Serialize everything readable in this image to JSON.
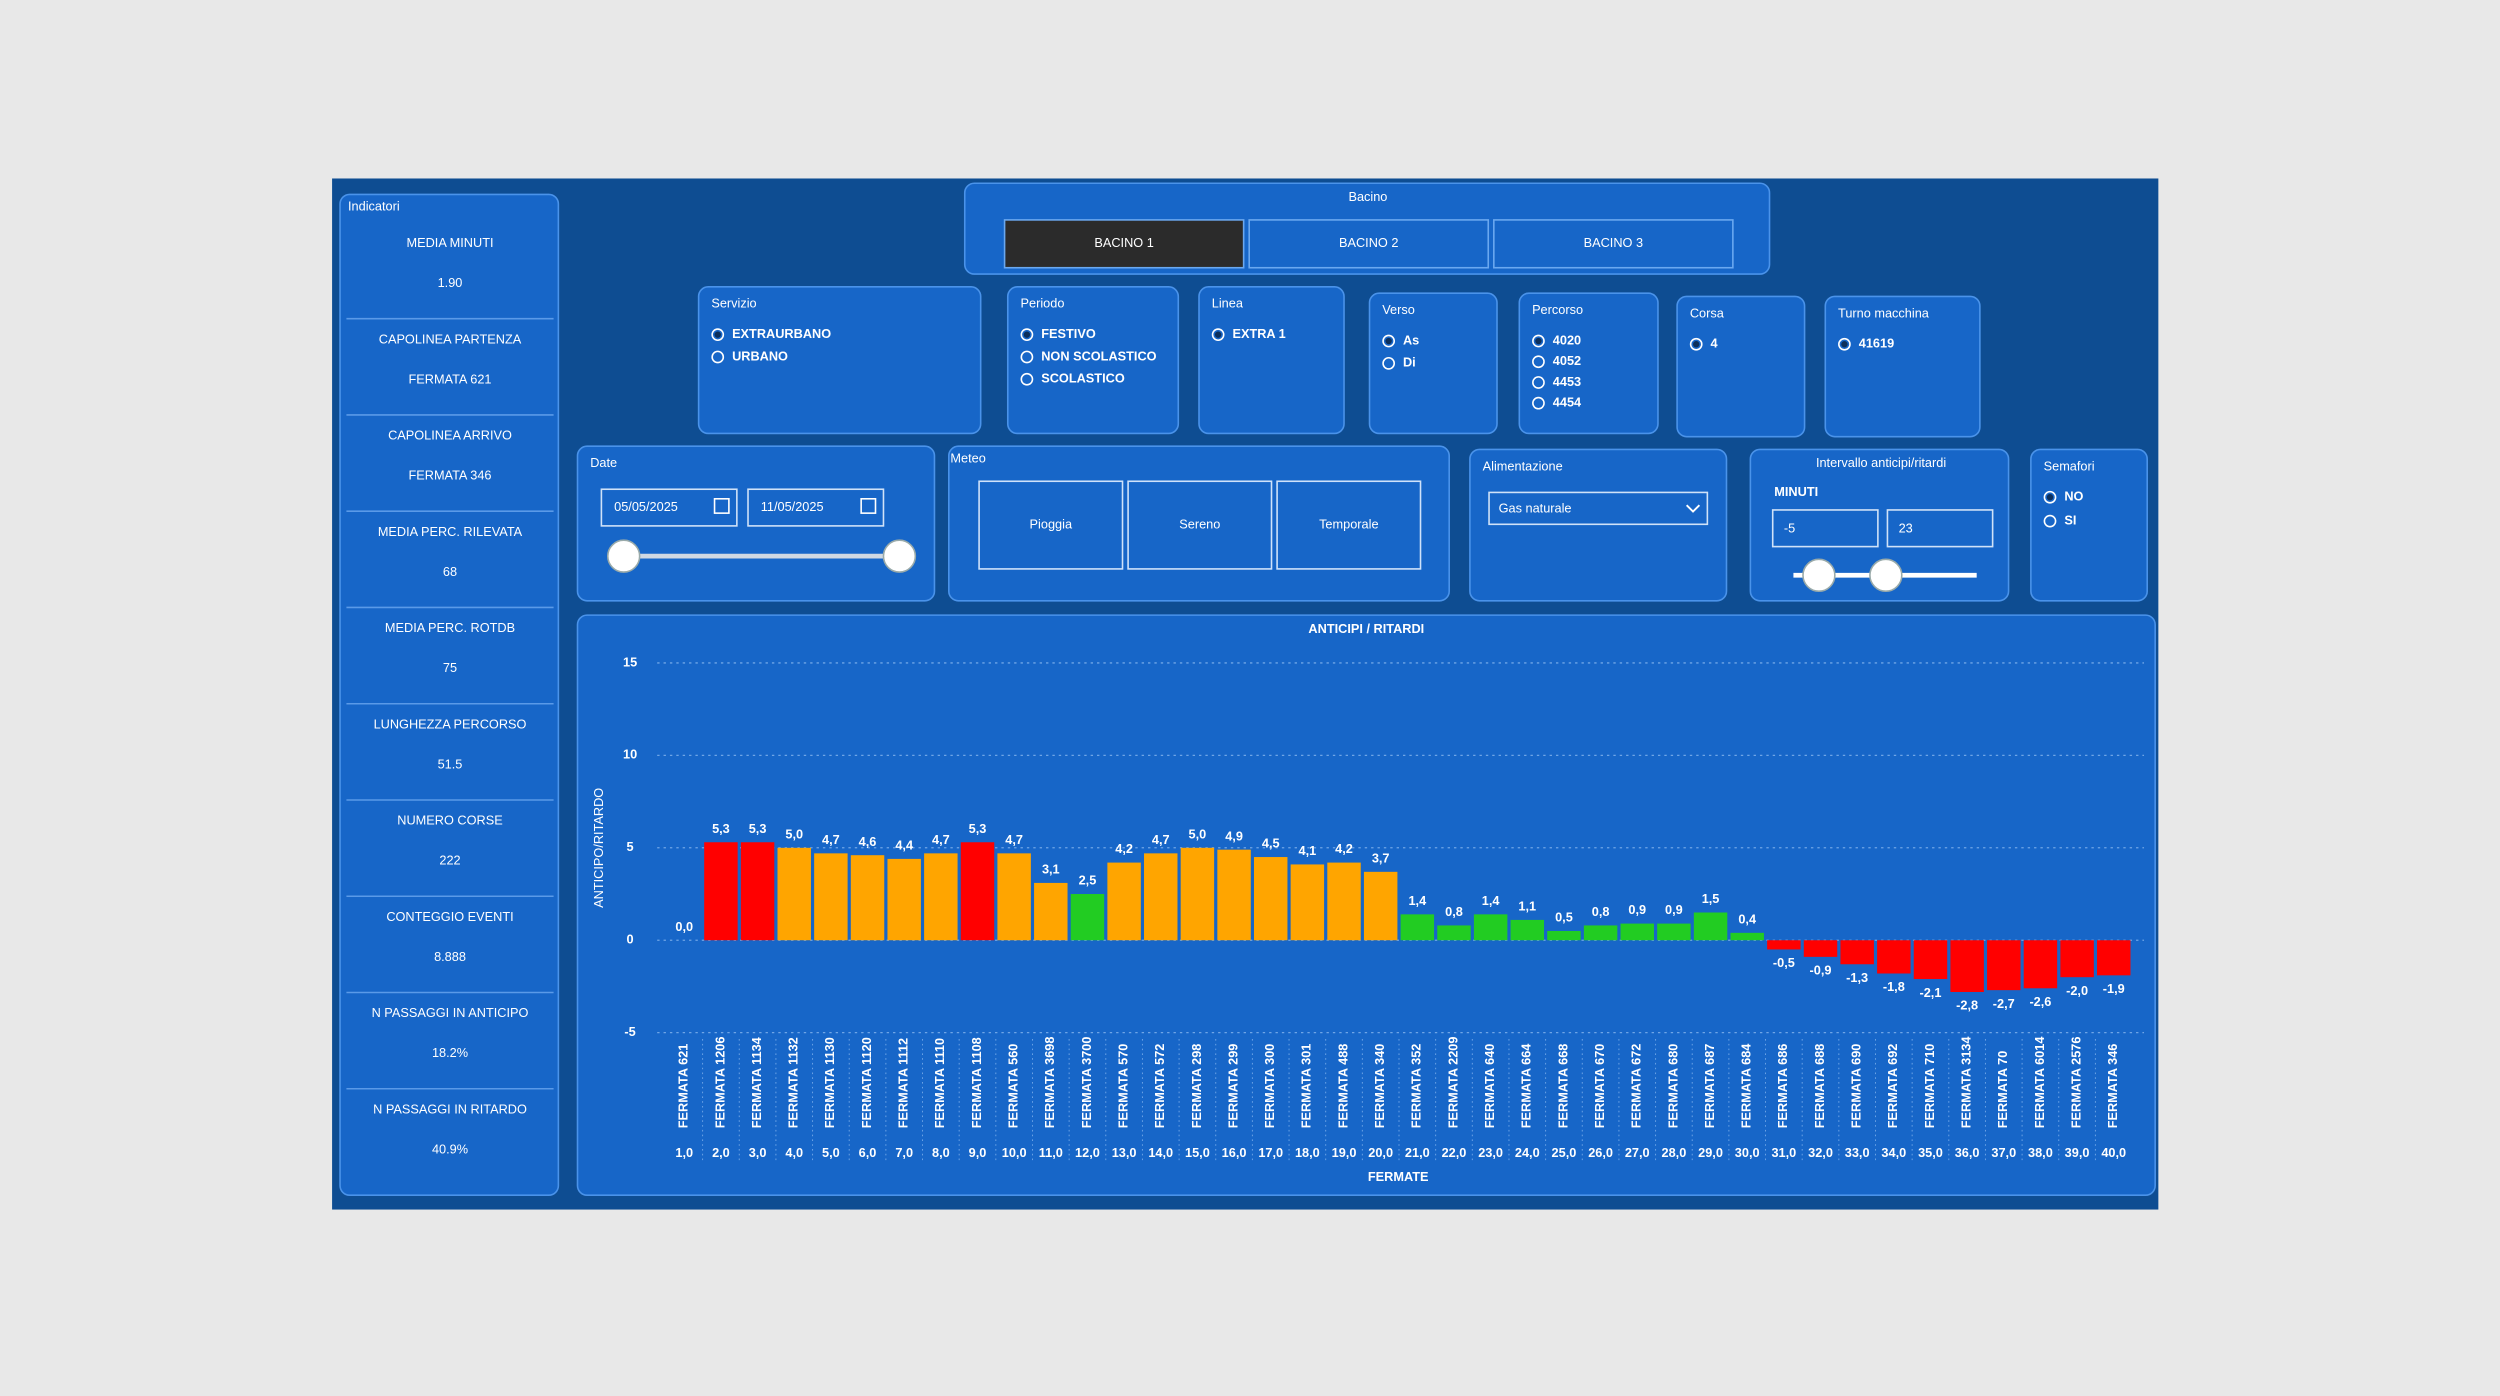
{
  "indicators": {
    "title": "Indicatori",
    "items": [
      {
        "label": "MEDIA MINUTI",
        "value": "1.90"
      },
      {
        "label": "CAPOLINEA PARTENZA",
        "value": "FERMATA 621"
      },
      {
        "label": "CAPOLINEA ARRIVO",
        "value": "FERMATA 346"
      },
      {
        "label": "MEDIA PERC. RILEVATA",
        "value": "68"
      },
      {
        "label": "MEDIA PERC. ROTDB",
        "value": "75"
      },
      {
        "label": "LUNGHEZZA PERCORSO",
        "value": "51.5"
      },
      {
        "label": "NUMERO CORSE",
        "value": "222"
      },
      {
        "label": "CONTEGGIO EVENTI",
        "value": "8.888"
      },
      {
        "label": "N PASSAGGI IN ANTICIPO",
        "value": "18.2%"
      },
      {
        "label": "N PASSAGGI IN RITARDO",
        "value": "40.9%"
      }
    ]
  },
  "bacino": {
    "title": "Bacino",
    "buttons": [
      {
        "label": "BACINO 1",
        "selected": true
      },
      {
        "label": "BACINO 2",
        "selected": false
      },
      {
        "label": "BACINO 3",
        "selected": false
      }
    ]
  },
  "filters": [
    {
      "title": "Servizio",
      "options": [
        {
          "label": "EXTRAURBANO",
          "selected": true
        },
        {
          "label": "URBANO",
          "selected": false
        }
      ]
    },
    {
      "title": "Periodo",
      "options": [
        {
          "label": "FESTIVO",
          "selected": true
        },
        {
          "label": "NON SCOLASTICO",
          "selected": false
        },
        {
          "label": "SCOLASTICO",
          "selected": false
        }
      ]
    },
    {
      "title": "Linea",
      "options": [
        {
          "label": "EXTRA 1",
          "selected": true
        }
      ]
    },
    {
      "title": "Verso",
      "options": [
        {
          "label": "As",
          "selected": true
        },
        {
          "label": "Di",
          "selected": false
        }
      ]
    },
    {
      "title": "Percorso",
      "options": [
        {
          "label": "4020",
          "selected": true
        },
        {
          "label": "4052",
          "selected": false
        },
        {
          "label": "4453",
          "selected": false
        },
        {
          "label": "4454",
          "selected": false
        }
      ]
    },
    {
      "title": "Corsa",
      "options": [
        {
          "label": "4",
          "selected": true
        }
      ]
    },
    {
      "title": "Turno macchina",
      "options": [
        {
          "label": "41619",
          "selected": true
        }
      ]
    },
    {
      "title": "Semafori",
      "options": [
        {
          "label": "NO",
          "selected": true
        },
        {
          "label": "SI",
          "selected": false
        }
      ]
    }
  ],
  "date": {
    "title": "Date",
    "start": "05/05/2025",
    "end": "11/05/2025"
  },
  "meteo": {
    "title": "Meteo",
    "buttons": [
      "Pioggia",
      "Sereno",
      "Temporale"
    ]
  },
  "alimentazione": {
    "title": "Alimentazione",
    "value": "Gas naturale"
  },
  "intervallo": {
    "title": "Intervallo anticipi/ritardi",
    "unit_label": "MINUTI",
    "min": "-5",
    "max": "23"
  },
  "chart_data": {
    "type": "bar",
    "title": "ANTICIPI / RITARDI",
    "y_label": "ANTICIPO/RITARDO",
    "x_label": "FERMATE",
    "categories": [
      "FERMATA 621",
      "FERMATA 1206",
      "FERMATA 1134",
      "FERMATA 1132",
      "FERMATA 1130",
      "FERMATA 1120",
      "FERMATA 1112",
      "FERMATA 1110",
      "FERMATA 1108",
      "FERMATA 560",
      "FERMATA 3698",
      "FERMATA 3700",
      "FERMATA 570",
      "FERMATA 572",
      "FERMATA 298",
      "FERMATA 299",
      "FERMATA 300",
      "FERMATA 301",
      "FERMATA 488",
      "FERMATA 340",
      "FERMATA 352",
      "FERMATA 2209",
      "FERMATA 640",
      "FERMATA 664",
      "FERMATA 668",
      "FERMATA 670",
      "FERMATA 672",
      "FERMATA 680",
      "FERMATA 687",
      "FERMATA 684",
      "FERMATA 686",
      "FERMATA 688",
      "FERMATA 690",
      "FERMATA 692",
      "FERMATA 710",
      "FERMATA 3134",
      "FERMATA 70",
      "FERMATA 6014",
      "FERMATA 2576",
      "FERMATA 346"
    ],
    "x_labels": [
      "1,0",
      "2,0",
      "3,0",
      "4,0",
      "5,0",
      "6,0",
      "7,0",
      "8,0",
      "9,0",
      "10,0",
      "11,0",
      "12,0",
      "13,0",
      "14,0",
      "15,0",
      "16,0",
      "17,0",
      "18,0",
      "19,0",
      "20,0",
      "21,0",
      "22,0",
      "23,0",
      "24,0",
      "25,0",
      "26,0",
      "27,0",
      "28,0",
      "29,0",
      "30,0",
      "31,0",
      "32,0",
      "33,0",
      "34,0",
      "35,0",
      "36,0",
      "37,0",
      "38,0",
      "39,0",
      "40,0"
    ],
    "values": [
      0.0,
      5.3,
      5.3,
      5.0,
      4.7,
      4.6,
      4.4,
      4.7,
      5.3,
      4.7,
      3.1,
      2.5,
      4.2,
      4.7,
      5.0,
      4.9,
      4.5,
      4.1,
      4.2,
      3.7,
      1.4,
      0.8,
      1.4,
      1.1,
      0.5,
      0.8,
      0.9,
      0.9,
      1.5,
      0.4,
      -0.5,
      -0.9,
      -1.3,
      -1.8,
      -2.1,
      -2.8,
      -2.7,
      -2.6,
      -2.0,
      -1.9
    ],
    "value_labels": [
      "0,0",
      "5,3",
      "5,3",
      "5,0",
      "4,7",
      "4,6",
      "4,4",
      "4,7",
      "5,3",
      "4,7",
      "3,1",
      "2,5",
      "4,2",
      "4,7",
      "5,0",
      "4,9",
      "4,5",
      "4,1",
      "4,2",
      "3,7",
      "1,4",
      "0,8",
      "1,4",
      "1,1",
      "0,5",
      "0,8",
      "0,9",
      "0,9",
      "1,5",
      "0,4",
      "-0,5",
      "-0,9",
      "-1,3",
      "-1,8",
      "-2,1",
      "-2,8",
      "-2,7",
      "-2,6",
      "-2,0",
      "-1,9"
    ],
    "colors": [
      "#ff0000",
      "#ff0000",
      "#ff0000",
      "#ffa500",
      "#ffa500",
      "#ffa500",
      "#ffa500",
      "#ffa500",
      "#ff0000",
      "#ffa500",
      "#ffa500",
      "#22cc22",
      "#ffa500",
      "#ffa500",
      "#ffa500",
      "#ffa500",
      "#ffa500",
      "#ffa500",
      "#ffa500",
      "#ffa500",
      "#22cc22",
      "#22cc22",
      "#22cc22",
      "#22cc22",
      "#22cc22",
      "#22cc22",
      "#22cc22",
      "#22cc22",
      "#22cc22",
      "#22cc22",
      "#ff0000",
      "#ff0000",
      "#ff0000",
      "#ff0000",
      "#ff0000",
      "#ff0000",
      "#ff0000",
      "#ff0000",
      "#ff0000",
      "#ff0000"
    ],
    "ylim": [
      -5,
      15
    ],
    "yticks": [
      -5,
      0,
      5,
      10,
      15
    ],
    "grid": true
  }
}
